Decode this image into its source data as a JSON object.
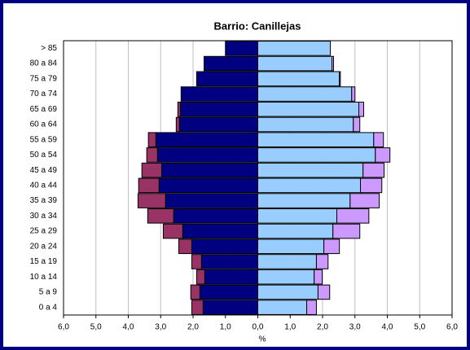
{
  "chart_data": {
    "type": "pyramid",
    "title": "Barrio: Canillejas",
    "x_label": "%",
    "categories": [
      "> 85",
      "80 a 84",
      "75 a 79",
      "70 a 74",
      "65 a 69",
      "60 a 64",
      "55 a 59",
      "50 a 54",
      "45 a 49",
      "40 a 44",
      "35 a 39",
      "30 a 34",
      "25 a 29",
      "20 a 24",
      "15 a 19",
      "10 a 14",
      "5 a 9",
      "0 a 4"
    ],
    "series": [
      {
        "color": "#000080",
        "values": [
          -1.0,
          -1.66,
          -1.89,
          -2.37,
          -2.39,
          -2.42,
          -3.15,
          -3.1,
          -2.97,
          -3.05,
          -2.85,
          -2.6,
          -2.32,
          -2.04,
          -1.74,
          -1.64,
          -1.79,
          -1.69
        ]
      },
      {
        "color": "#993366",
        "values": [
          0,
          0,
          0,
          0,
          -0.08,
          -0.1,
          -0.23,
          -0.33,
          -0.61,
          -0.63,
          -0.85,
          -0.8,
          -0.6,
          -0.4,
          -0.3,
          -0.25,
          -0.28,
          -0.35
        ]
      },
      {
        "color": "#99ccff",
        "values": [
          2.24,
          2.29,
          2.52,
          2.9,
          3.12,
          2.95,
          3.58,
          3.63,
          3.25,
          3.17,
          2.85,
          2.44,
          2.32,
          2.04,
          1.81,
          1.74,
          1.86,
          1.51
        ]
      },
      {
        "color": "#cc99ff",
        "values": [
          0,
          0.05,
          0.03,
          0.1,
          0.15,
          0.2,
          0.3,
          0.45,
          0.65,
          0.66,
          0.9,
          0.99,
          0.83,
          0.48,
          0.36,
          0.25,
          0.36,
          0.3
        ]
      }
    ],
    "xlim": [
      -6,
      6
    ],
    "xticks": [
      {
        "value": -6,
        "label": "6,0"
      },
      {
        "value": -5,
        "label": "5,0"
      },
      {
        "value": -4,
        "label": "4,0"
      },
      {
        "value": -3,
        "label": "3,0"
      },
      {
        "value": -2,
        "label": "2,0"
      },
      {
        "value": -1,
        "label": "1,0"
      },
      {
        "value": 0,
        "label": "0,0"
      },
      {
        "value": 1,
        "label": "1,0"
      },
      {
        "value": 2,
        "label": "2,0"
      },
      {
        "value": 3,
        "label": "3,0"
      },
      {
        "value": 4,
        "label": "4,0"
      },
      {
        "value": 5,
        "label": "5,0"
      },
      {
        "value": 6,
        "label": "6,0"
      }
    ],
    "grid": true
  }
}
